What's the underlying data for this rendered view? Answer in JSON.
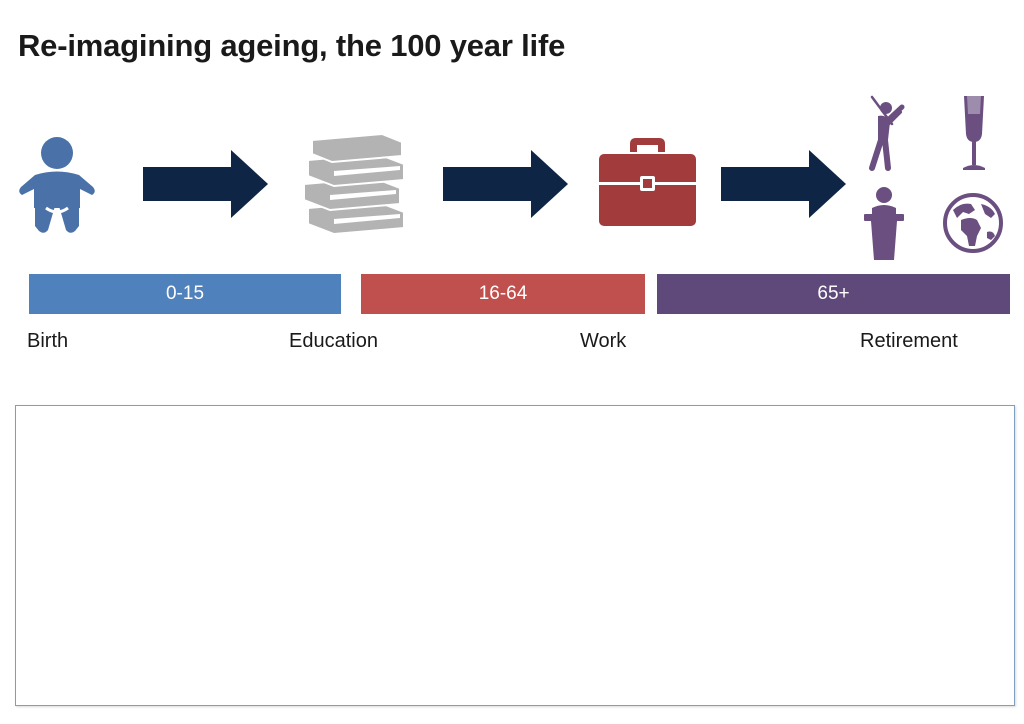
{
  "title": "Re-imagining ageing, the 100 year life",
  "colors": {
    "baby": "#4a72a8",
    "books": "#b3b3b3",
    "briefcase": "#a23b3b",
    "retirement_icons": "#6a4f80",
    "arrow": "#0f2545",
    "bar_childhood": "#4f81bd",
    "bar_work": "#c0504d",
    "bar_retirement": "#5f497a"
  },
  "icons": {
    "birth": "baby-icon",
    "education": "books-icon",
    "work": "briefcase-icon",
    "retirement": [
      "golfer-icon",
      "champagne-glass-icon",
      "speaker-podium-icon",
      "globe-icon"
    ]
  },
  "age_bands": [
    {
      "label": "0-15"
    },
    {
      "label": "16-64"
    },
    {
      "label": "65+"
    }
  ],
  "stages": [
    {
      "label": "Birth"
    },
    {
      "label": "Education"
    },
    {
      "label": "Work"
    },
    {
      "label": "Retirement"
    }
  ]
}
